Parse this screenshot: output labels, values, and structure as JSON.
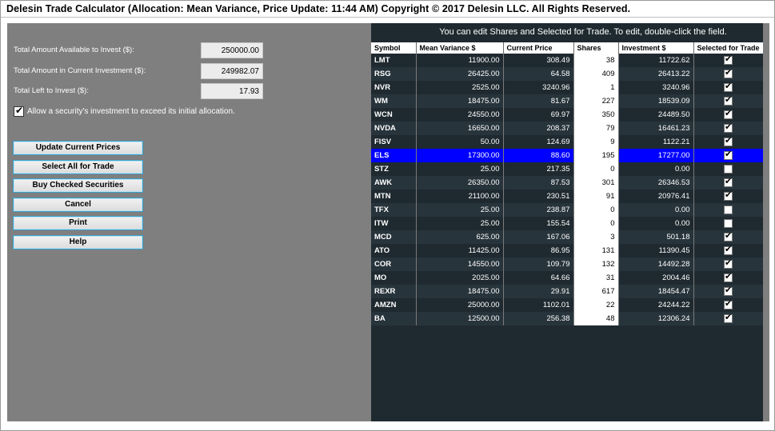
{
  "window": {
    "title": "Delesin Trade Calculator (Allocation: Mean Variance, Price Update: 11:44 AM) Copyright © 2017 Delesin LLC. All Rights Reserved."
  },
  "form": {
    "total_available_label": "Total Amount Available to Invest ($):",
    "total_available_value": "250000.00",
    "current_investment_label": "Total Amount in Current Investment ($):",
    "current_investment_value": "249982.07",
    "left_to_invest_label": "Total Left to Invest ($):",
    "left_to_invest_value": "17.93",
    "allow_exceed_label": "Allow a security's investment to exceed its initial allocation.",
    "allow_exceed_checked": true
  },
  "buttons": {
    "update_prices": "Update Current Prices",
    "select_all": "Select All for Trade",
    "buy_checked": "Buy Checked Securities",
    "cancel": "Cancel",
    "print": "Print",
    "help": "Help"
  },
  "grid": {
    "hint": "You can edit Shares and Selected for Trade. To edit, double-click the field.",
    "columns": [
      "Symbol",
      "Mean Variance $",
      "Current Price",
      "Shares",
      "Investment $",
      "Selected for Trade"
    ],
    "selected_row_color": "#0000ff",
    "rows": [
      {
        "symbol": "LMT",
        "mean_variance": "11900.00",
        "price": "308.49",
        "shares": "38",
        "investment": "11722.62",
        "selected": true,
        "highlight": false
      },
      {
        "symbol": "RSG",
        "mean_variance": "26425.00",
        "price": "64.58",
        "shares": "409",
        "investment": "26413.22",
        "selected": true,
        "highlight": false
      },
      {
        "symbol": "NVR",
        "mean_variance": "2525.00",
        "price": "3240.96",
        "shares": "1",
        "investment": "3240.96",
        "selected": true,
        "highlight": false
      },
      {
        "symbol": "WM",
        "mean_variance": "18475.00",
        "price": "81.67",
        "shares": "227",
        "investment": "18539.09",
        "selected": true,
        "highlight": false
      },
      {
        "symbol": "WCN",
        "mean_variance": "24550.00",
        "price": "69.97",
        "shares": "350",
        "investment": "24489.50",
        "selected": true,
        "highlight": false
      },
      {
        "symbol": "NVDA",
        "mean_variance": "16650.00",
        "price": "208.37",
        "shares": "79",
        "investment": "16461.23",
        "selected": true,
        "highlight": false
      },
      {
        "symbol": "FISV",
        "mean_variance": "50.00",
        "price": "124.69",
        "shares": "9",
        "investment": "1122.21",
        "selected": true,
        "highlight": false
      },
      {
        "symbol": "ELS",
        "mean_variance": "17300.00",
        "price": "88.60",
        "shares": "195",
        "investment": "17277.00",
        "selected": true,
        "highlight": true
      },
      {
        "symbol": "STZ",
        "mean_variance": "25.00",
        "price": "217.35",
        "shares": "0",
        "investment": "0.00",
        "selected": false,
        "highlight": false
      },
      {
        "symbol": "AWK",
        "mean_variance": "26350.00",
        "price": "87.53",
        "shares": "301",
        "investment": "26346.53",
        "selected": true,
        "highlight": false
      },
      {
        "symbol": "MTN",
        "mean_variance": "21100.00",
        "price": "230.51",
        "shares": "91",
        "investment": "20976.41",
        "selected": true,
        "highlight": false
      },
      {
        "symbol": "TFX",
        "mean_variance": "25.00",
        "price": "238.87",
        "shares": "0",
        "investment": "0.00",
        "selected": false,
        "highlight": false
      },
      {
        "symbol": "ITW",
        "mean_variance": "25.00",
        "price": "155.54",
        "shares": "0",
        "investment": "0.00",
        "selected": false,
        "highlight": false
      },
      {
        "symbol": "MCD",
        "mean_variance": "625.00",
        "price": "167.06",
        "shares": "3",
        "investment": "501.18",
        "selected": true,
        "highlight": false
      },
      {
        "symbol": "ATO",
        "mean_variance": "11425.00",
        "price": "86.95",
        "shares": "131",
        "investment": "11390.45",
        "selected": true,
        "highlight": false
      },
      {
        "symbol": "COR",
        "mean_variance": "14550.00",
        "price": "109.79",
        "shares": "132",
        "investment": "14492.28",
        "selected": true,
        "highlight": false
      },
      {
        "symbol": "MO",
        "mean_variance": "2025.00",
        "price": "64.66",
        "shares": "31",
        "investment": "2004.46",
        "selected": true,
        "highlight": false
      },
      {
        "symbol": "REXR",
        "mean_variance": "18475.00",
        "price": "29.91",
        "shares": "617",
        "investment": "18454.47",
        "selected": true,
        "highlight": false
      },
      {
        "symbol": "AMZN",
        "mean_variance": "25000.00",
        "price": "1102.01",
        "shares": "22",
        "investment": "24244.22",
        "selected": true,
        "highlight": false
      },
      {
        "symbol": "BA",
        "mean_variance": "12500.00",
        "price": "256.38",
        "shares": "48",
        "investment": "12306.24",
        "selected": true,
        "highlight": false
      }
    ]
  }
}
